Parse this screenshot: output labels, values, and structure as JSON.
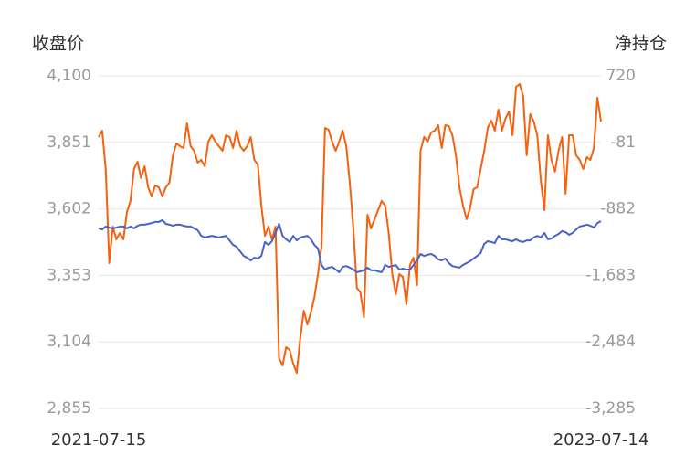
{
  "chart_data": {
    "type": "line",
    "ylabel": "收盘价",
    "y2label": "净持仓",
    "categories": [
      "2021-07-15",
      null,
      null,
      null,
      null,
      null,
      null,
      null,
      null,
      null,
      null,
      null,
      null,
      null,
      null,
      null,
      null,
      null,
      null,
      null,
      null,
      null,
      null,
      null,
      null,
      null,
      null,
      null,
      null,
      null,
      null,
      null,
      null,
      null,
      null,
      null,
      null,
      null,
      null,
      null,
      null,
      null,
      null,
      null,
      null,
      null,
      null,
      null,
      null,
      null,
      null,
      null,
      null,
      null,
      null,
      null,
      null,
      null,
      null,
      null,
      null,
      null,
      null,
      null,
      null,
      null,
      null,
      null,
      null,
      null,
      null,
      null,
      null,
      null,
      null,
      null,
      null,
      null,
      null,
      null,
      null,
      null,
      null,
      null,
      null,
      null,
      null,
      null,
      null,
      null,
      null,
      null,
      null,
      null,
      null,
      null,
      null,
      null,
      null,
      null,
      null,
      null,
      null,
      null,
      null,
      null,
      null,
      null,
      null,
      null,
      null,
      null,
      null,
      null,
      null,
      null,
      null,
      null,
      null,
      null,
      null,
      null,
      null,
      null,
      null,
      null,
      null,
      null,
      null,
      null,
      null,
      null,
      null,
      null,
      null,
      null,
      null,
      null,
      null,
      null,
      null,
      null,
      "2023-07-14"
    ],
    "ylim": [
      2855,
      4100
    ],
    "yticks": [
      {
        "value": 4100,
        "label": "4,100"
      },
      {
        "value": 3851,
        "label": "3,851"
      },
      {
        "value": 3602,
        "label": "3,602"
      },
      {
        "value": 3353,
        "label": "3,353"
      },
      {
        "value": 3104,
        "label": "3,104"
      },
      {
        "value": 2855,
        "label": "2,855"
      }
    ],
    "y2lim": [
      -3285,
      720
    ],
    "y2ticks": [
      720,
      -81,
      -882,
      {
        "value": -1683,
        "label": "-1,683"
      },
      {
        "value": -2484,
        "label": "-2,484"
      },
      {
        "value": -3285,
        "label": "-3,285"
      }
    ],
    "grid": true,
    "series": [
      {
        "color": "#f4620f",
        "axis": "y2",
        "values": [
          -17,
          60,
          -402,
          -1536,
          -1096,
          -1250,
          -1173,
          -1250,
          -919,
          -787,
          -402,
          -314,
          -512,
          -369,
          -622,
          -732,
          -600,
          -622,
          -732,
          -622,
          -567,
          -237,
          -94,
          -127,
          -149,
          148,
          -127,
          -182,
          -325,
          -292,
          -369,
          -72,
          5,
          -72,
          -127,
          -182,
          5,
          -17,
          -149,
          60,
          -127,
          -182,
          -127,
          -17,
          -292,
          -347,
          -842,
          -1206,
          -1096,
          -1250,
          -1096,
          -2680,
          -2768,
          -2548,
          -2581,
          -2746,
          -2856,
          -2438,
          -2108,
          -2273,
          -2130,
          -1943,
          -1668,
          -1338,
          93,
          71,
          -72,
          -182,
          -72,
          60,
          -127,
          -567,
          -1117,
          -1833,
          -1888,
          -2185,
          -952,
          -1117,
          -1007,
          -897,
          -787,
          -842,
          -1173,
          -1668,
          -1910,
          -1668,
          -1701,
          -2031,
          -1558,
          -1470,
          -1800,
          -182,
          -17,
          -72,
          38,
          60,
          126,
          -149,
          126,
          115,
          5,
          -237,
          -622,
          -842,
          -1007,
          -875,
          -644,
          -622,
          -402,
          -182,
          93,
          181,
          60,
          313,
          60,
          203,
          291,
          5,
          588,
          621,
          478,
          -237,
          258,
          170,
          5,
          -545,
          -897,
          5,
          -292,
          -435,
          -182,
          -17,
          -699,
          5,
          5,
          -237,
          -292,
          -402,
          -259,
          -292,
          -149,
          456,
          170
        ]
      },
      {
        "color": "#4a62c6",
        "values": [
          3529,
          3525,
          3536,
          3532,
          3529,
          3532,
          3536,
          3536,
          3529,
          3536,
          3529,
          3539,
          3543,
          3543,
          3546,
          3549,
          3553,
          3553,
          3560,
          3546,
          3543,
          3539,
          3543,
          3543,
          3539,
          3536,
          3536,
          3529,
          3522,
          3501,
          3495,
          3498,
          3501,
          3498,
          3495,
          3498,
          3501,
          3484,
          3467,
          3460,
          3443,
          3426,
          3419,
          3409,
          3419,
          3416,
          3426,
          3478,
          3467,
          3481,
          3512,
          3546,
          3501,
          3488,
          3478,
          3501,
          3484,
          3495,
          3498,
          3501,
          3488,
          3467,
          3454,
          3392,
          3375,
          3382,
          3385,
          3375,
          3365,
          3385,
          3388,
          3382,
          3375,
          3365,
          3368,
          3372,
          3382,
          3372,
          3372,
          3368,
          3365,
          3392,
          3385,
          3388,
          3392,
          3375,
          3378,
          3375,
          3375,
          3392,
          3409,
          3433,
          3426,
          3430,
          3433,
          3426,
          3413,
          3409,
          3416,
          3399,
          3388,
          3385,
          3382,
          3392,
          3399,
          3406,
          3416,
          3426,
          3437,
          3471,
          3481,
          3478,
          3474,
          3501,
          3488,
          3488,
          3484,
          3481,
          3488,
          3481,
          3478,
          3484,
          3484,
          3495,
          3501,
          3495,
          3512,
          3488,
          3491,
          3501,
          3508,
          3519,
          3515,
          3505,
          3512,
          3525,
          3536,
          3539,
          3543,
          3539,
          3532,
          3549,
          3556
        ]
      }
    ]
  }
}
